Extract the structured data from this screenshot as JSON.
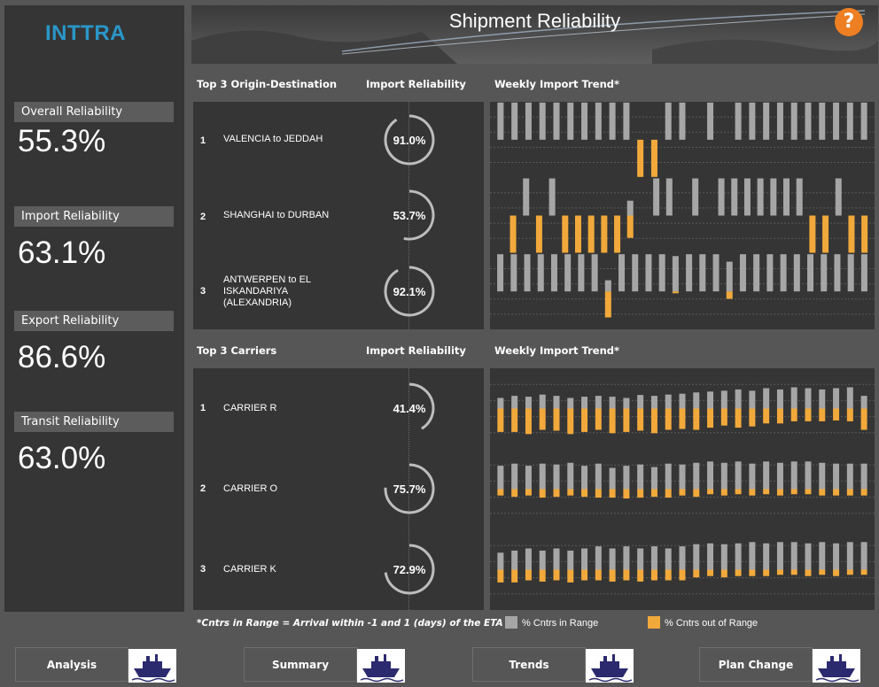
{
  "brand": {
    "logo_text": "INTTRA"
  },
  "header": {
    "title": "Shipment  Reliability",
    "help_label": "?"
  },
  "kpis": [
    {
      "label": "Overall Reliability",
      "value": "55.3%"
    },
    {
      "label": "Import Reliability",
      "value": "63.1%"
    },
    {
      "label": "Export Reliability",
      "value": "86.6%"
    },
    {
      "label": "Transit Reliability",
      "value": "63.0%"
    }
  ],
  "od_section": {
    "col1": "Top 3 Origin-Destination",
    "col2": "Import Reliability",
    "col3": "Weekly Import Trend*",
    "rows": [
      {
        "rank": "1",
        "name": "VALENCIA to JEDDAH",
        "pct": "91.0%",
        "value": 91.0
      },
      {
        "rank": "2",
        "name": "SHANGHAI to DURBAN",
        "pct": "53.7%",
        "value": 53.7
      },
      {
        "rank": "3",
        "name": "ANTWERPEN to EL ISKANDARIYA (ALEXANDRIA)",
        "pct": "92.1%",
        "value": 92.1
      }
    ]
  },
  "carrier_section": {
    "col1": "Top 3 Carriers",
    "col2": "Import Reliability",
    "col3": "Weekly Import Trend*",
    "rows": [
      {
        "rank": "1",
        "name": "CARRIER R",
        "pct": "41.4%",
        "value": 41.4
      },
      {
        "rank": "2",
        "name": "CARRIER O",
        "pct": "75.7%",
        "value": 75.7
      },
      {
        "rank": "3",
        "name": "CARRIER K",
        "pct": "72.9%",
        "value": 72.9
      }
    ]
  },
  "footnote": "*Cntrs in Range = Arrival within -1 and 1 (days) of the ETA",
  "legend": {
    "in_range": "% Cntrs in Range",
    "out_range": "% Cntrs out of Range"
  },
  "colors": {
    "in_range": "#a6a6a6",
    "out_range": "#f2a93b",
    "accent": "#ee7f22",
    "logo": "#2a97c9"
  },
  "nav": [
    {
      "label": "Analysis",
      "icon": "ship-icon"
    },
    {
      "label": "Summary",
      "icon": "ship-icon"
    },
    {
      "label": "Trends",
      "icon": "ship-icon"
    },
    {
      "label": "Plan Change",
      "icon": "ship-icon"
    }
  ],
  "chart_data": [
    {
      "type": "bar",
      "title": "Weekly Import Trend*",
      "subtitle": "VALENCIA to JEDDAH",
      "series": [
        {
          "name": "% Cntrs in Range",
          "values": [
            1,
            1,
            1,
            1,
            1,
            1,
            1,
            1,
            1,
            1,
            0,
            0,
            1,
            1,
            0,
            1,
            0,
            1,
            1,
            1,
            1,
            1,
            1,
            1,
            1,
            1,
            1
          ]
        },
        {
          "name": "% Cntrs out of Range",
          "values": [
            0,
            0,
            0,
            0,
            0,
            0,
            0,
            0,
            0,
            0,
            1,
            1,
            0,
            0,
            0,
            0,
            0,
            0,
            0,
            0,
            0,
            0,
            0,
            0,
            0,
            0,
            0
          ]
        }
      ]
    },
    {
      "type": "bar",
      "title": "Weekly Import Trend*",
      "subtitle": "SHANGHAI to DURBAN",
      "series": [
        {
          "name": "% Cntrs in Range",
          "values": [
            0,
            0,
            1,
            0,
            1,
            0,
            0,
            0,
            0,
            0,
            0.4,
            0,
            1,
            1,
            0,
            1,
            0,
            1,
            1,
            1,
            1,
            1,
            1,
            1,
            0,
            0,
            1,
            0,
            0
          ]
        },
        {
          "name": "% Cntrs out of Range",
          "values": [
            0,
            1,
            0,
            1,
            0,
            1,
            1,
            1,
            1,
            1,
            0.6,
            0,
            0,
            0,
            0,
            0,
            0,
            0,
            0,
            0,
            0,
            0,
            0,
            0,
            1,
            1,
            0,
            1,
            1
          ]
        }
      ]
    },
    {
      "type": "bar",
      "title": "Weekly Import Trend*",
      "subtitle": "ANTWERPEN to EL ISKANDARIYA (ALEXANDRIA)",
      "series": [
        {
          "name": "% Cntrs in Range",
          "values": [
            1,
            1,
            1,
            1,
            1,
            1,
            1,
            1,
            0.3,
            1,
            1,
            1,
            1,
            0.95,
            1,
            1,
            1,
            0.8,
            1,
            1,
            1,
            1,
            1,
            1,
            1,
            1,
            1,
            1
          ]
        },
        {
          "name": "% Cntrs out of Range",
          "values": [
            0,
            0,
            0,
            0,
            0,
            0,
            0,
            0,
            0.7,
            0,
            0,
            0,
            0,
            0.05,
            0,
            0,
            0,
            0.2,
            0,
            0,
            0,
            0,
            0,
            0,
            0,
            0,
            0,
            0
          ]
        }
      ]
    },
    {
      "type": "bar",
      "title": "Weekly Import Trend*",
      "subtitle": "CARRIER R",
      "series": [
        {
          "name": "% Cntrs in Range",
          "values": [
            0.25,
            0.3,
            0.28,
            0.33,
            0.3,
            0.25,
            0.28,
            0.3,
            0.28,
            0.25,
            0.32,
            0.3,
            0.33,
            0.35,
            0.38,
            0.4,
            0.42,
            0.45,
            0.42,
            0.48,
            0.45,
            0.5,
            0.48,
            0.45,
            0.48,
            0.5,
            0.3
          ]
        },
        {
          "name": "% Cntrs out of Range",
          "values": [
            0.55,
            0.55,
            0.6,
            0.5,
            0.52,
            0.6,
            0.55,
            0.5,
            0.58,
            0.55,
            0.52,
            0.58,
            0.5,
            0.48,
            0.5,
            0.45,
            0.4,
            0.45,
            0.42,
            0.35,
            0.35,
            0.3,
            0.3,
            0.3,
            0.28,
            0.3,
            0.5
          ]
        }
      ]
    },
    {
      "type": "bar",
      "title": "Weekly Import Trend*",
      "subtitle": "CARRIER O",
      "series": [
        {
          "name": "% Cntrs in Range",
          "values": [
            0.55,
            0.6,
            0.55,
            0.6,
            0.58,
            0.62,
            0.55,
            0.6,
            0.5,
            0.55,
            0.58,
            0.52,
            0.6,
            0.58,
            0.62,
            0.65,
            0.62,
            0.65,
            0.6,
            0.65,
            0.62,
            0.65,
            0.65,
            0.62,
            0.6,
            0.6,
            0.6
          ]
        },
        {
          "name": "% Cntrs out of Range",
          "values": [
            0.15,
            0.18,
            0.15,
            0.2,
            0.18,
            0.15,
            0.18,
            0.2,
            0.2,
            0.22,
            0.2,
            0.18,
            0.2,
            0.15,
            0.18,
            0.12,
            0.15,
            0.12,
            0.15,
            0.12,
            0.15,
            0.12,
            0.12,
            0.15,
            0.15,
            0.15,
            0.15
          ]
        }
      ]
    },
    {
      "type": "bar",
      "title": "Weekly Import Trend*",
      "subtitle": "CARRIER K",
      "series": [
        {
          "name": "% Cntrs in Range",
          "values": [
            0.4,
            0.45,
            0.5,
            0.45,
            0.5,
            0.45,
            0.5,
            0.55,
            0.5,
            0.55,
            0.5,
            0.55,
            0.5,
            0.55,
            0.6,
            0.62,
            0.6,
            0.62,
            0.65,
            0.62,
            0.65,
            0.65,
            0.62,
            0.65,
            0.62,
            0.65,
            0.65
          ]
        },
        {
          "name": "% Cntrs out of Range",
          "values": [
            0.3,
            0.3,
            0.25,
            0.28,
            0.25,
            0.3,
            0.25,
            0.25,
            0.28,
            0.25,
            0.28,
            0.25,
            0.25,
            0.25,
            0.18,
            0.15,
            0.18,
            0.15,
            0.15,
            0.15,
            0.12,
            0.12,
            0.15,
            0.12,
            0.15,
            0.12,
            0.12
          ]
        }
      ]
    }
  ]
}
